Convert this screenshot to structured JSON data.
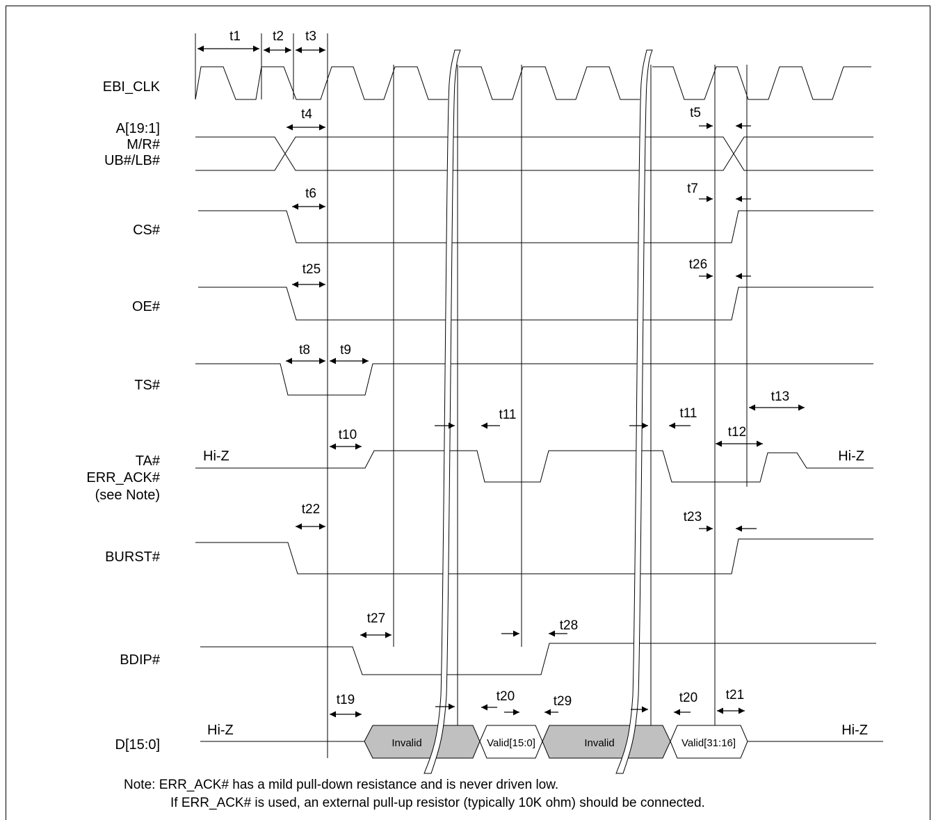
{
  "signals": {
    "ebi_clk": "EBI_CLK",
    "addr_1": "A[19:1]",
    "addr_2": "M/R#",
    "addr_3": "UB#/LB#",
    "cs": "CS#",
    "oe": "OE#",
    "ts": "TS#",
    "ta_1": "TA#",
    "ta_2": "ERR_ACK#",
    "ta_3": "(see Note)",
    "burst": "BURST#",
    "bdip": "BDIP#",
    "data": "D[15:0]"
  },
  "timing_labels": {
    "t1": "t1",
    "t2": "t2",
    "t3": "t3",
    "t4": "t4",
    "t5": "t5",
    "t6": "t6",
    "t7": "t7",
    "t8": "t8",
    "t9": "t9",
    "t10": "t10",
    "t11a": "t11",
    "t11b": "t11",
    "t12": "t12",
    "t13": "t13",
    "t19": "t19",
    "t20a": "t20",
    "t20b": "t20",
    "t21": "t21",
    "t22": "t22",
    "t23": "t23",
    "t25": "t25",
    "t26": "t26",
    "t27": "t27",
    "t28": "t28",
    "t29": "t29"
  },
  "states": {
    "hiz": "Hi-Z",
    "invalid": "Invalid",
    "valid_low": "Valid[15:0]",
    "valid_high": "Valid[31:16]"
  },
  "colors": {
    "invalid_fill": "#c0c0c0"
  },
  "note": {
    "line1": "Note: ERR_ACK# has a mild pull-down resistance and is never driven low.",
    "line2": "If ERR_ACK# is used, an external pull-up resistor (typically 10K ohm) should be connected."
  }
}
